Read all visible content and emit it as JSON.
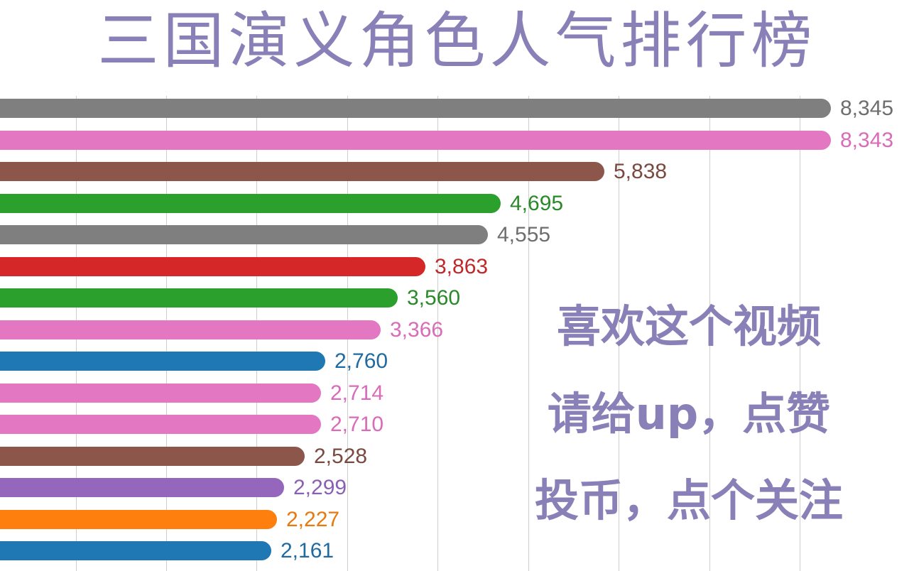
{
  "title": "三国演义角色人气排行榜",
  "title_color": "#8a80b8",
  "promo": {
    "lines": [
      "喜欢这个视频",
      "请给up，点赞",
      "投币，点个关注"
    ],
    "color": "#8a80b8"
  },
  "chart_data": {
    "type": "bar",
    "orientation": "horizontal",
    "title": "三国演义角色人气排行榜",
    "xlabel": "",
    "ylabel": "",
    "category_labels_visible": false,
    "grid": true,
    "grid_step": 1000,
    "values": [
      8345,
      8343,
      5838,
      4695,
      4555,
      3863,
      3560,
      3366,
      2760,
      2714,
      2710,
      2528,
      2299,
      2227,
      2161
    ],
    "value_labels": [
      "8,345",
      "8,343",
      "5,838",
      "4,695",
      "4,555",
      "3,863",
      "3,560",
      "3,366",
      "2,760",
      "2,714",
      "2,710",
      "2,528",
      "2,299",
      "2,227",
      "2,161"
    ],
    "colors": [
      "#7f7f7f",
      "#e377c2",
      "#8c564b",
      "#2ca02c",
      "#7f7f7f",
      "#d62728",
      "#2ca02c",
      "#e377c2",
      "#1f77b4",
      "#e377c2",
      "#e377c2",
      "#8c564b",
      "#9467bd",
      "#ff7f0e",
      "#1f77b4"
    ],
    "label_colors": [
      "#6e6e6e",
      "#d96bb8",
      "#7a4a40",
      "#2a8a2a",
      "#6e6e6e",
      "#c0282a",
      "#2a8a2a",
      "#d96bb8",
      "#1f6aa0",
      "#d96bb8",
      "#d96bb8",
      "#7a4a40",
      "#8a60b5",
      "#e8790f",
      "#1f6aa0"
    ]
  }
}
